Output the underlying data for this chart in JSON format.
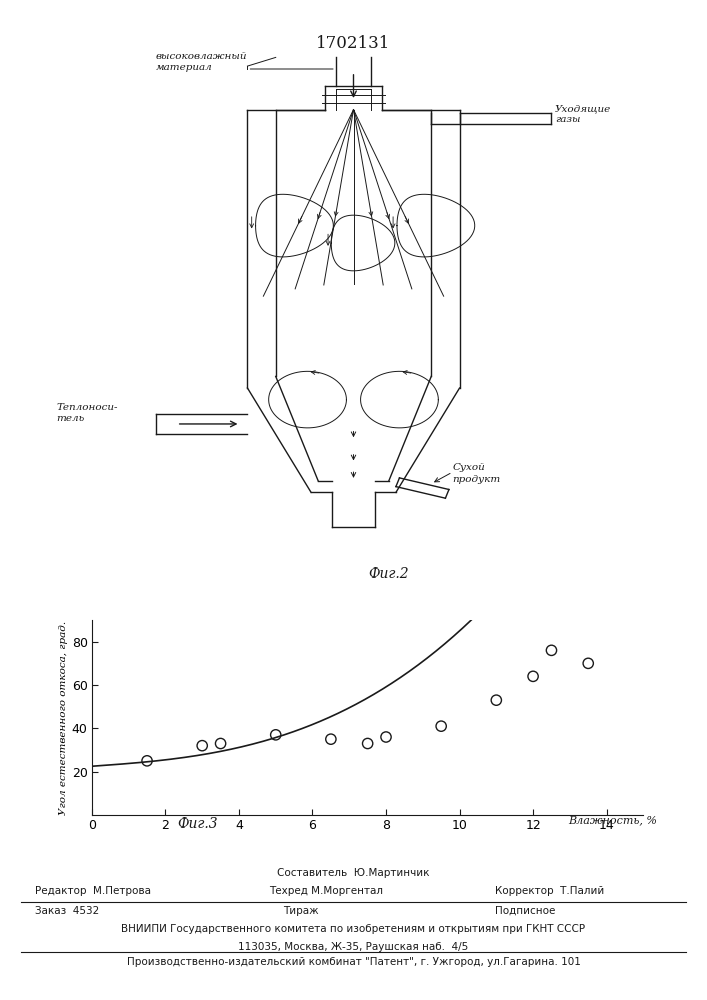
{
  "title": "1702131",
  "fig2_caption": "Фиг.2",
  "fig3_caption": "Фиг.3",
  "ylabel": "Угол естественного откоса, град.",
  "xlabel": "Влажность, %",
  "scatter_x": [
    1.5,
    3.0,
    3.5,
    5.0,
    6.5,
    7.5,
    8.0,
    9.5,
    11.0,
    12.0,
    12.5,
    13.5
  ],
  "scatter_y": [
    25,
    32,
    33,
    37,
    35,
    33,
    36,
    41,
    53,
    64,
    76,
    70
  ],
  "xlim": [
    0,
    15
  ],
  "ylim": [
    0,
    90
  ],
  "xticks": [
    0,
    2,
    4,
    6,
    8,
    10,
    12,
    14
  ],
  "yticks": [
    20,
    40,
    60,
    80
  ],
  "label_vysokovlazh": "высоковлажный\nматериал",
  "label_ukhodyashchie": "Уходящие\nгазы",
  "label_teplonositel": "Теплоноси-\nтель",
  "label_sukhoy": "Сухой\nпродукт",
  "footer_line1": "Составитель  Ю.Мартинчик",
  "footer_editor": "Редактор  М.Петрова",
  "footer_tekhred": "Техред М.Моргентал",
  "footer_korrektor": "Корректор  Т.Палий",
  "footer_zakaz": "Заказ  4532",
  "footer_tirazh": "Тираж",
  "footer_podpisnoe": "Подписное",
  "footer_vniiipi": "ВНИИПИ Государственного комитета по изобретениям и открытиям при ГКНТ СССР",
  "footer_address": "113035, Москва, Ж-35, Раушская наб.  4/5",
  "footer_kombinate": "Производственно-издательский комбинат \"Патент\", г. Ужгород, ул.Гагарина. 101",
  "bg_color": "#ffffff",
  "line_color": "#1a1a1a",
  "text_color": "#1a1a1a"
}
